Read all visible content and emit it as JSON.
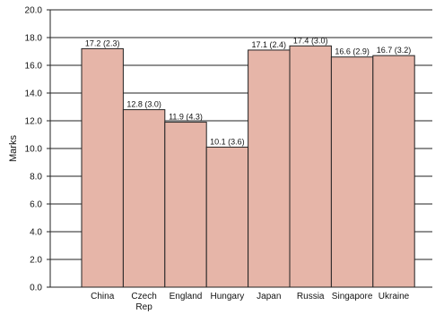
{
  "chart_data": {
    "type": "bar",
    "title": "",
    "xlabel": "",
    "ylabel": "Marks",
    "ylim": [
      0,
      20
    ],
    "y_ticks": [
      "0.0",
      "2.0",
      "4.0",
      "6.0",
      "8.0",
      "10.0",
      "12.0",
      "14.0",
      "16.0",
      "18.0",
      "20.0"
    ],
    "grid": true,
    "bar_color": "#e6b5a8",
    "categories": [
      [
        "China"
      ],
      [
        "Czech",
        "Rep"
      ],
      [
        "England"
      ],
      [
        "Hungary"
      ],
      [
        "Japan"
      ],
      [
        "Russia"
      ],
      [
        "Singapore"
      ],
      [
        "Ukraine"
      ]
    ],
    "values": [
      17.2,
      12.8,
      11.9,
      10.1,
      17.1,
      17.4,
      16.6,
      16.7
    ],
    "data_labels": [
      "17.2 (2.3)",
      "12.8 (3.0)",
      "11.9 (4.3)",
      "10.1 (3.6)",
      "17.1 (2.4)",
      "17.4 (3.0)",
      "16.6 (2.9)",
      "16.7 (3.2)"
    ]
  }
}
